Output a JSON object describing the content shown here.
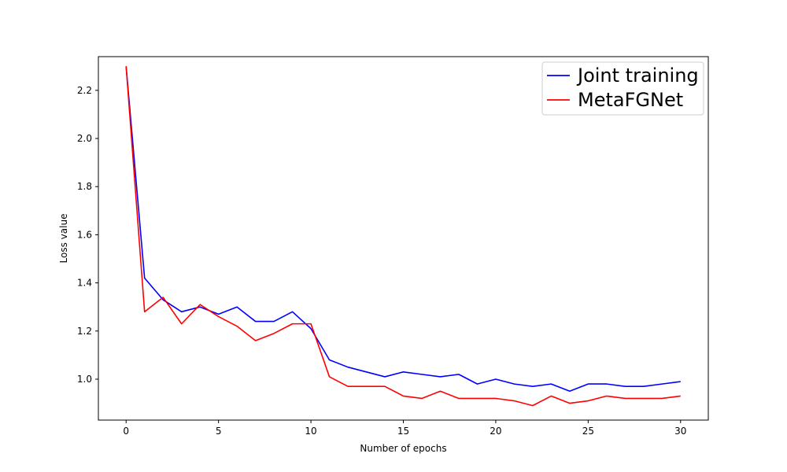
{
  "chart_data": {
    "type": "line",
    "title": "",
    "xlabel": "Number of epochs",
    "ylabel": "Loss value",
    "xlim": [
      -1.5,
      31.5
    ],
    "ylim": [
      0.83,
      2.34
    ],
    "xticks": [
      0,
      5,
      10,
      15,
      20,
      25,
      30
    ],
    "xtick_labels": [
      "0",
      "5",
      "10",
      "15",
      "20",
      "25",
      "30"
    ],
    "yticks": [
      1.0,
      1.2,
      1.4,
      1.6,
      1.8,
      2.0,
      2.2
    ],
    "ytick_labels": [
      "1.0",
      "1.2",
      "1.4",
      "1.6",
      "1.8",
      "2.0",
      "2.2"
    ],
    "grid": false,
    "legend_position": "top-right",
    "x": [
      0,
      1,
      2,
      3,
      4,
      5,
      6,
      7,
      8,
      9,
      10,
      11,
      12,
      13,
      14,
      15,
      16,
      17,
      18,
      19,
      20,
      21,
      22,
      23,
      24,
      25,
      26,
      27,
      28,
      29,
      30
    ],
    "series": [
      {
        "name": "Joint training",
        "color": "#0000ff",
        "values": [
          2.3,
          1.42,
          1.33,
          1.28,
          1.3,
          1.27,
          1.3,
          1.24,
          1.24,
          1.28,
          1.21,
          1.08,
          1.05,
          1.03,
          1.01,
          1.03,
          1.02,
          1.01,
          1.02,
          0.98,
          1.0,
          0.98,
          0.97,
          0.98,
          0.95,
          0.98,
          0.98,
          0.97,
          0.97,
          0.98,
          0.99
        ]
      },
      {
        "name": "MetaFGNet",
        "color": "#ff0000",
        "values": [
          2.3,
          1.28,
          1.34,
          1.23,
          1.31,
          1.26,
          1.22,
          1.16,
          1.19,
          1.23,
          1.23,
          1.01,
          0.97,
          0.97,
          0.97,
          0.93,
          0.92,
          0.95,
          0.92,
          0.92,
          0.92,
          0.91,
          0.89,
          0.93,
          0.9,
          0.91,
          0.93,
          0.92,
          0.92,
          0.92,
          0.93
        ]
      }
    ]
  }
}
